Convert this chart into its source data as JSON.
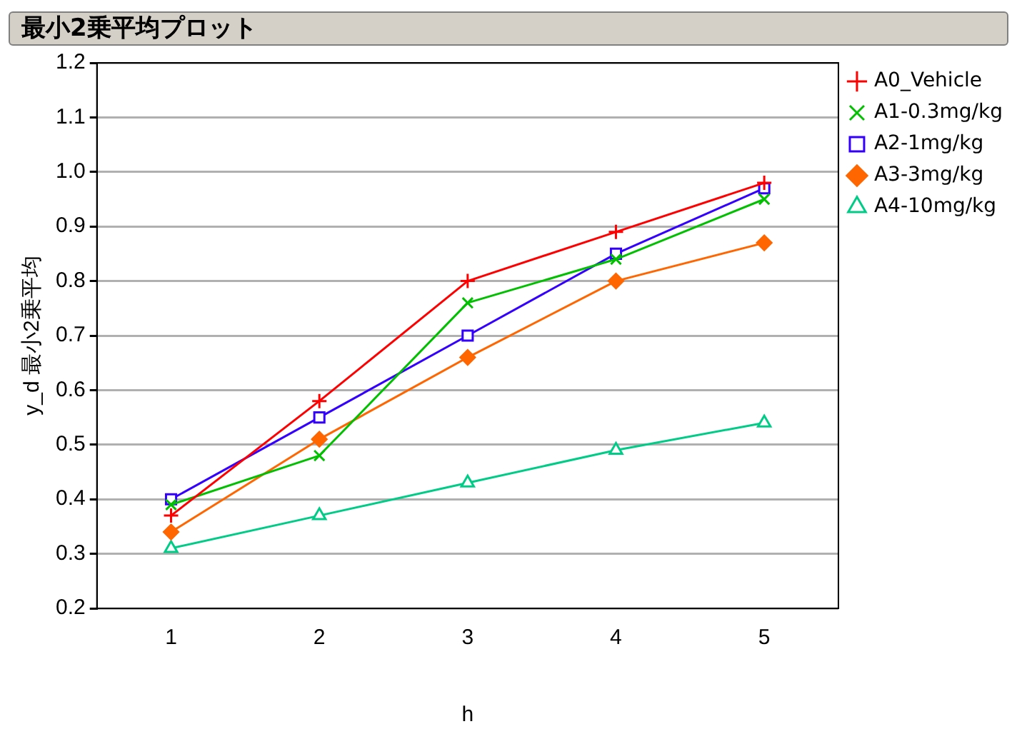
{
  "chart_data": {
    "type": "line",
    "title": "最小2乗平均プロット",
    "xlabel": "h",
    "ylabel": "y_d 最小2乗平均",
    "categories": [
      "1",
      "2",
      "3",
      "4",
      "5"
    ],
    "series": [
      {
        "name": "A0_Vehicle",
        "color": "#ff0000",
        "marker": "cross",
        "values": [
          0.37,
          0.58,
          0.8,
          0.89,
          0.98
        ]
      },
      {
        "name": "A1-0.3mg/kg",
        "color": "#00c000",
        "marker": "x",
        "values": [
          0.39,
          0.48,
          0.76,
          0.84,
          0.95
        ]
      },
      {
        "name": "A2-1mg/kg",
        "color": "#3300ff",
        "marker": "square",
        "values": [
          0.4,
          0.55,
          0.7,
          0.85,
          0.97
        ]
      },
      {
        "name": "A3-3mg/kg",
        "color": "#ff6600",
        "marker": "diamond",
        "values": [
          0.34,
          0.51,
          0.66,
          0.8,
          0.87
        ]
      },
      {
        "name": "A4-10mg/kg",
        "color": "#00cc88",
        "marker": "triangle",
        "values": [
          0.31,
          0.37,
          0.43,
          0.49,
          0.54
        ]
      }
    ],
    "ylim": [
      0.2,
      1.2
    ],
    "yticks": [
      0.2,
      0.3,
      0.4,
      0.5,
      0.6,
      0.7,
      0.8,
      0.9,
      {
        "value": 1.0,
        "label": "1.0"
      },
      1.1,
      1.2
    ],
    "grid": "y",
    "legend": "top right",
    "line_style": "solid"
  }
}
